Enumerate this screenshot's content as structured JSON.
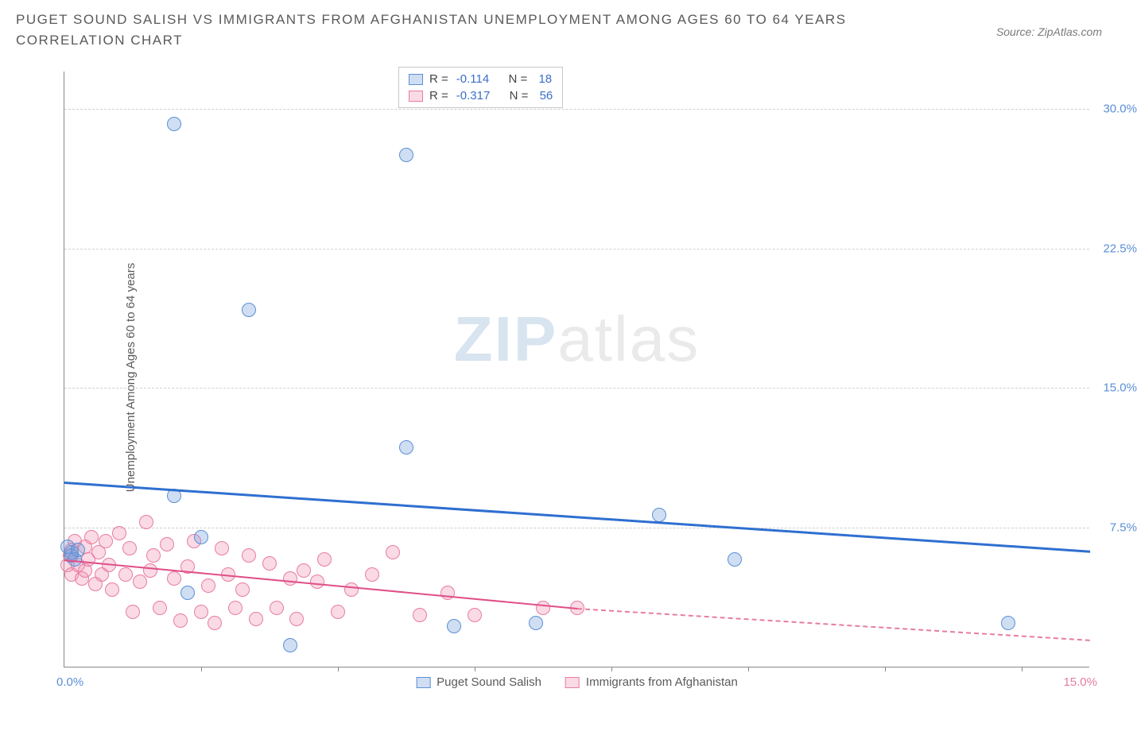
{
  "header": {
    "title": "PUGET SOUND SALISH VS IMMIGRANTS FROM AFGHANISTAN UNEMPLOYMENT AMONG AGES 60 TO 64 YEARS CORRELATION CHART",
    "source": "Source: ZipAtlas.com"
  },
  "ylabel": "Unemployment Among Ages 60 to 64 years",
  "watermark": {
    "a": "ZIP",
    "b": "atlas"
  },
  "axes": {
    "ylim": [
      0,
      32
    ],
    "xlim": [
      0,
      15
    ],
    "yticks": [
      {
        "v": 7.5,
        "label": "7.5%"
      },
      {
        "v": 15.0,
        "label": "15.0%"
      },
      {
        "v": 22.5,
        "label": "22.5%"
      },
      {
        "v": 30.0,
        "label": "30.0%"
      }
    ],
    "xticks_at": [
      2,
      4,
      6,
      8,
      10,
      12,
      14
    ],
    "x_origin_label": "0.0%",
    "x_end_label": "15.0%",
    "ytick_color": "#5a8fd6",
    "grid_color": "#d0d0d0"
  },
  "series": {
    "blue": {
      "label": "Puget Sound Salish",
      "fill": "rgba(120,160,220,0.35)",
      "stroke": "#5a8fd6",
      "point_r": 9,
      "points": [
        [
          0.1,
          6.0
        ],
        [
          0.1,
          6.2
        ],
        [
          0.15,
          5.8
        ],
        [
          1.6,
          29.2
        ],
        [
          1.6,
          9.2
        ],
        [
          2.0,
          7.0
        ],
        [
          2.7,
          19.2
        ],
        [
          3.3,
          1.2
        ],
        [
          1.8,
          4.0
        ],
        [
          5.0,
          27.5
        ],
        [
          5.0,
          11.8
        ],
        [
          5.7,
          2.2
        ],
        [
          6.9,
          2.4
        ],
        [
          8.7,
          8.2
        ],
        [
          9.8,
          5.8
        ],
        [
          13.8,
          2.4
        ],
        [
          0.05,
          6.5
        ],
        [
          0.2,
          6.3
        ]
      ],
      "trend": {
        "x1": 0,
        "y1": 10.0,
        "x2": 15,
        "y2": 6.3,
        "color": "#2f6fd0",
        "width": 2.5
      }
    },
    "pink": {
      "label": "Immigrants from Afghanistan",
      "fill": "rgba(240,150,180,0.35)",
      "stroke": "#e87ca0",
      "point_r": 9,
      "points": [
        [
          0.05,
          5.5
        ],
        [
          0.08,
          6.0
        ],
        [
          0.1,
          6.3
        ],
        [
          0.1,
          5.0
        ],
        [
          0.15,
          6.8
        ],
        [
          0.2,
          5.5
        ],
        [
          0.25,
          4.8
        ],
        [
          0.3,
          6.5
        ],
        [
          0.3,
          5.2
        ],
        [
          0.35,
          5.8
        ],
        [
          0.4,
          7.0
        ],
        [
          0.45,
          4.5
        ],
        [
          0.5,
          6.2
        ],
        [
          0.55,
          5.0
        ],
        [
          0.6,
          6.8
        ],
        [
          0.65,
          5.5
        ],
        [
          0.7,
          4.2
        ],
        [
          0.8,
          7.2
        ],
        [
          0.9,
          5.0
        ],
        [
          0.95,
          6.4
        ],
        [
          1.0,
          3.0
        ],
        [
          1.1,
          4.6
        ],
        [
          1.2,
          7.8
        ],
        [
          1.25,
          5.2
        ],
        [
          1.3,
          6.0
        ],
        [
          1.4,
          3.2
        ],
        [
          1.5,
          6.6
        ],
        [
          1.6,
          4.8
        ],
        [
          1.7,
          2.5
        ],
        [
          1.8,
          5.4
        ],
        [
          1.9,
          6.8
        ],
        [
          2.0,
          3.0
        ],
        [
          2.1,
          4.4
        ],
        [
          2.2,
          2.4
        ],
        [
          2.3,
          6.4
        ],
        [
          2.4,
          5.0
        ],
        [
          2.5,
          3.2
        ],
        [
          2.6,
          4.2
        ],
        [
          2.7,
          6.0
        ],
        [
          2.8,
          2.6
        ],
        [
          3.0,
          5.6
        ],
        [
          3.1,
          3.2
        ],
        [
          3.3,
          4.8
        ],
        [
          3.4,
          2.6
        ],
        [
          3.5,
          5.2
        ],
        [
          3.7,
          4.6
        ],
        [
          3.8,
          5.8
        ],
        [
          4.0,
          3.0
        ],
        [
          4.2,
          4.2
        ],
        [
          4.5,
          5.0
        ],
        [
          4.8,
          6.2
        ],
        [
          5.2,
          2.8
        ],
        [
          5.6,
          4.0
        ],
        [
          6.0,
          2.8
        ],
        [
          7.0,
          3.2
        ],
        [
          7.5,
          3.2
        ]
      ],
      "trend_solid": {
        "x1": 0,
        "y1": 5.8,
        "x2": 7.5,
        "y2": 3.2,
        "color": "#e05088",
        "width": 2
      },
      "trend_dashed": {
        "x1": 7.5,
        "y1": 3.2,
        "x2": 15,
        "y2": 1.5,
        "color": "#e87ca0"
      }
    }
  },
  "stat_legend": {
    "rows": [
      {
        "swatch_fill": "rgba(120,160,220,0.35)",
        "swatch_stroke": "#5a8fd6",
        "r_label": "R =",
        "r_val": "-0.114",
        "n_label": "N =",
        "n_val": "18"
      },
      {
        "swatch_fill": "rgba(240,150,180,0.35)",
        "swatch_stroke": "#e87ca0",
        "r_label": "R =",
        "r_val": "-0.317",
        "n_label": "N =",
        "n_val": "56"
      }
    ]
  },
  "bottom_legend": [
    {
      "swatch_fill": "rgba(120,160,220,0.35)",
      "swatch_stroke": "#5a8fd6",
      "label": "Puget Sound Salish"
    },
    {
      "swatch_fill": "rgba(240,150,180,0.35)",
      "swatch_stroke": "#e87ca0",
      "label": "Immigrants from Afghanistan"
    }
  ]
}
